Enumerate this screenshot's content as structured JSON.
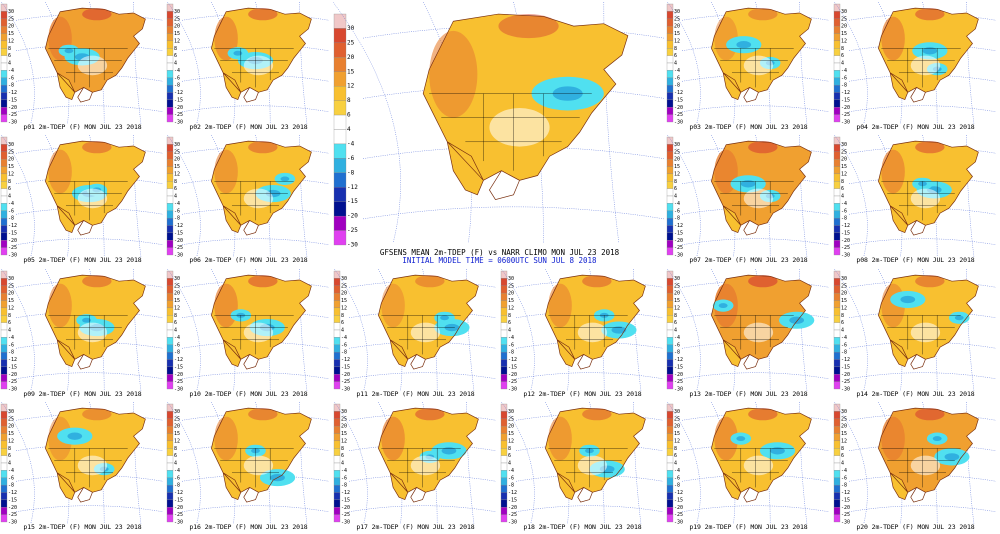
{
  "colorbar": {
    "levels": [
      "30",
      "25",
      "20",
      "15",
      "12",
      "8",
      "6",
      "4",
      "-4",
      "-6",
      "-8",
      "-12",
      "-15",
      "-20",
      "-25",
      "-30"
    ],
    "levels_big": [
      "30",
      "25",
      "20",
      "15",
      "12",
      "8",
      "6",
      "4",
      "-4",
      "-6",
      "-8",
      "-12",
      "-15",
      "-20",
      "-25",
      "-30"
    ],
    "colors": [
      "#f0c8c8",
      "#d84830",
      "#e06030",
      "#e88030",
      "#f0a030",
      "#f8c030",
      "#f8d040",
      "#ffffff",
      "#ffffff",
      "#50e0f0",
      "#30b0e0",
      "#2070d0",
      "#1830b0",
      "#001090",
      "#a000c0",
      "#e040f0"
    ]
  },
  "main": {
    "title": "GFSENS MEAN 2m-TDEP (F) vs NARR CLIMO MON JUL 23 2018",
    "subtitle": "INITIAL MODEL TIME = 0600UTC SUN JUL 8 2018"
  },
  "panels": [
    {
      "id": "p01",
      "title": "p01 2m-TDEP (F) MON JUL 23 2018",
      "cold": [
        [
          45,
          45
        ],
        [
          36,
          40
        ]
      ],
      "warm": 0.8
    },
    {
      "id": "p02",
      "title": "p02 2m-TDEP (F) MON JUL 23 2018",
      "cold": [
        [
          50,
          48
        ],
        [
          38,
          42
        ]
      ],
      "warm": 0.7
    },
    {
      "id": "p03",
      "title": "p03 2m-TDEP (F) MON JUL 23 2018",
      "cold": [
        [
          42,
          35
        ],
        [
          60,
          50
        ]
      ],
      "warm": 0.5
    },
    {
      "id": "p04",
      "title": "p04 2m-TDEP (F) MON JUL 23 2018",
      "cold": [
        [
          55,
          40
        ],
        [
          60,
          55
        ]
      ],
      "warm": 0.7
    },
    {
      "id": "p05",
      "title": "p05 2m-TDEP (F) MON JUL 23 2018",
      "cold": [
        [
          50,
          48
        ],
        [
          55,
          45
        ]
      ],
      "warm": 0.6
    },
    {
      "id": "p06",
      "title": "p06 2m-TDEP (F) MON JUL 23 2018",
      "cold": [
        [
          62,
          48
        ],
        [
          70,
          36
        ]
      ],
      "warm": 0.6
    },
    {
      "id": "p07",
      "title": "p07 2m-TDEP (F) MON JUL 23 2018",
      "cold": [
        [
          45,
          40
        ],
        [
          60,
          50
        ]
      ],
      "warm": 0.8
    },
    {
      "id": "p08",
      "title": "p08 2m-TDEP (F) MON JUL 23 2018",
      "cold": [
        [
          58,
          45
        ],
        [
          50,
          40
        ]
      ],
      "warm": 0.7
    },
    {
      "id": "p09",
      "title": "p09 2m-TDEP (F) MON JUL 23 2018",
      "cold": [
        [
          55,
          48
        ],
        [
          48,
          42
        ]
      ],
      "warm": 0.6
    },
    {
      "id": "p10",
      "title": "p10 2m-TDEP (F) MON JUL 23 2018",
      "cold": [
        [
          58,
          48
        ],
        [
          40,
          38
        ]
      ],
      "warm": 0.7
    },
    {
      "id": "p11",
      "title": "p11 2m-TDEP (F) MON JUL 23 2018",
      "cold": [
        [
          70,
          48
        ],
        [
          65,
          40
        ]
      ],
      "warm": 0.5
    },
    {
      "id": "p12",
      "title": "p12 2m-TDEP (F) MON JUL 23 2018",
      "cold": [
        [
          70,
          50
        ],
        [
          60,
          38
        ]
      ],
      "warm": 0.6
    },
    {
      "id": "p13",
      "title": "p13 2m-TDEP (F) MON JUL 23 2018",
      "cold": [
        [
          78,
          42
        ],
        [
          28,
          30
        ]
      ],
      "warm": 0.9
    },
    {
      "id": "p14",
      "title": "p14 2m-TDEP (F) MON JUL 23 2018",
      "cold": [
        [
          40,
          25
        ],
        [
          75,
          40
        ]
      ],
      "warm": 0.6
    },
    {
      "id": "p15",
      "title": "p15 2m-TDEP (F) MON JUL 23 2018",
      "cold": [
        [
          40,
          28
        ],
        [
          60,
          55
        ]
      ],
      "warm": 0.5
    },
    {
      "id": "p16",
      "title": "p16 2m-TDEP (F) MON JUL 23 2018",
      "cold": [
        [
          65,
          62
        ],
        [
          50,
          40
        ]
      ],
      "warm": 0.6
    },
    {
      "id": "p17",
      "title": "p17 2m-TDEP (F) MON JUL 23 2018",
      "cold": [
        [
          68,
          40
        ],
        [
          55,
          45
        ]
      ],
      "warm": 0.7
    },
    {
      "id": "p18",
      "title": "p18 2m-TDEP (F) MON JUL 23 2018",
      "cold": [
        [
          62,
          55
        ],
        [
          50,
          40
        ]
      ],
      "warm": 0.6
    },
    {
      "id": "p19",
      "title": "p19 2m-TDEP (F) MON JUL 23 2018",
      "cold": [
        [
          65,
          40
        ],
        [
          40,
          30
        ]
      ],
      "warm": 0.7
    },
    {
      "id": "p20",
      "title": "p20 2m-TDEP (F) MON JUL 23 2018",
      "cold": [
        [
          70,
          45
        ],
        [
          60,
          30
        ]
      ],
      "warm": 0.8
    }
  ]
}
